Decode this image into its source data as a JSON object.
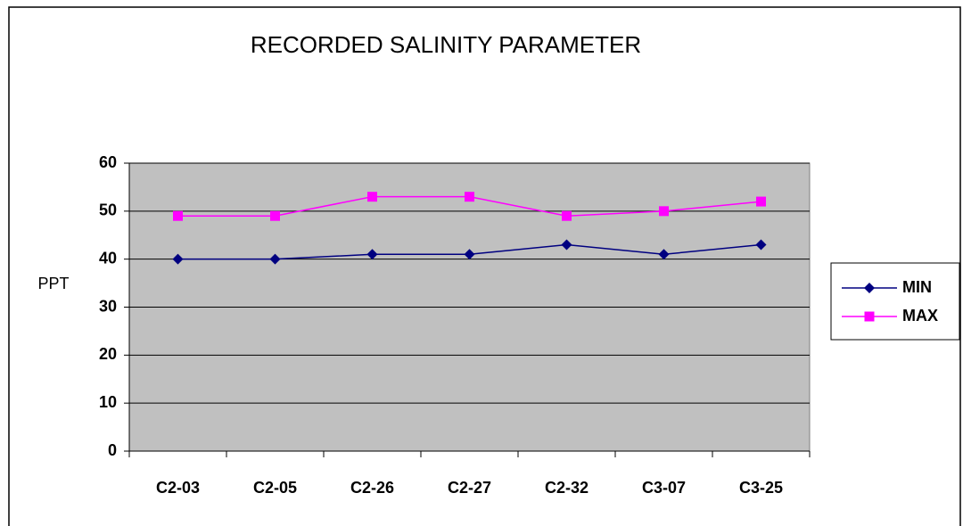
{
  "chart_data": {
    "type": "line",
    "title": "RECORDED SALINITY PARAMETER",
    "y_label": "PPT",
    "categories": [
      "C2-03",
      "C2-05",
      "C2-26",
      "C2-27",
      "C2-32",
      "C3-07",
      "C3-25"
    ],
    "series": [
      {
        "name": "MIN",
        "color": "#000080",
        "marker": "diamond",
        "values": [
          40,
          40,
          41,
          41,
          43,
          41,
          43
        ]
      },
      {
        "name": "MAX",
        "color": "#ff00ff",
        "marker": "square",
        "values": [
          49,
          49,
          53,
          53,
          49,
          50,
          52
        ]
      }
    ],
    "ylim": [
      0,
      60
    ],
    "yticks": [
      0,
      10,
      20,
      30,
      40,
      50,
      60
    ],
    "grid": true,
    "legend": "right"
  }
}
